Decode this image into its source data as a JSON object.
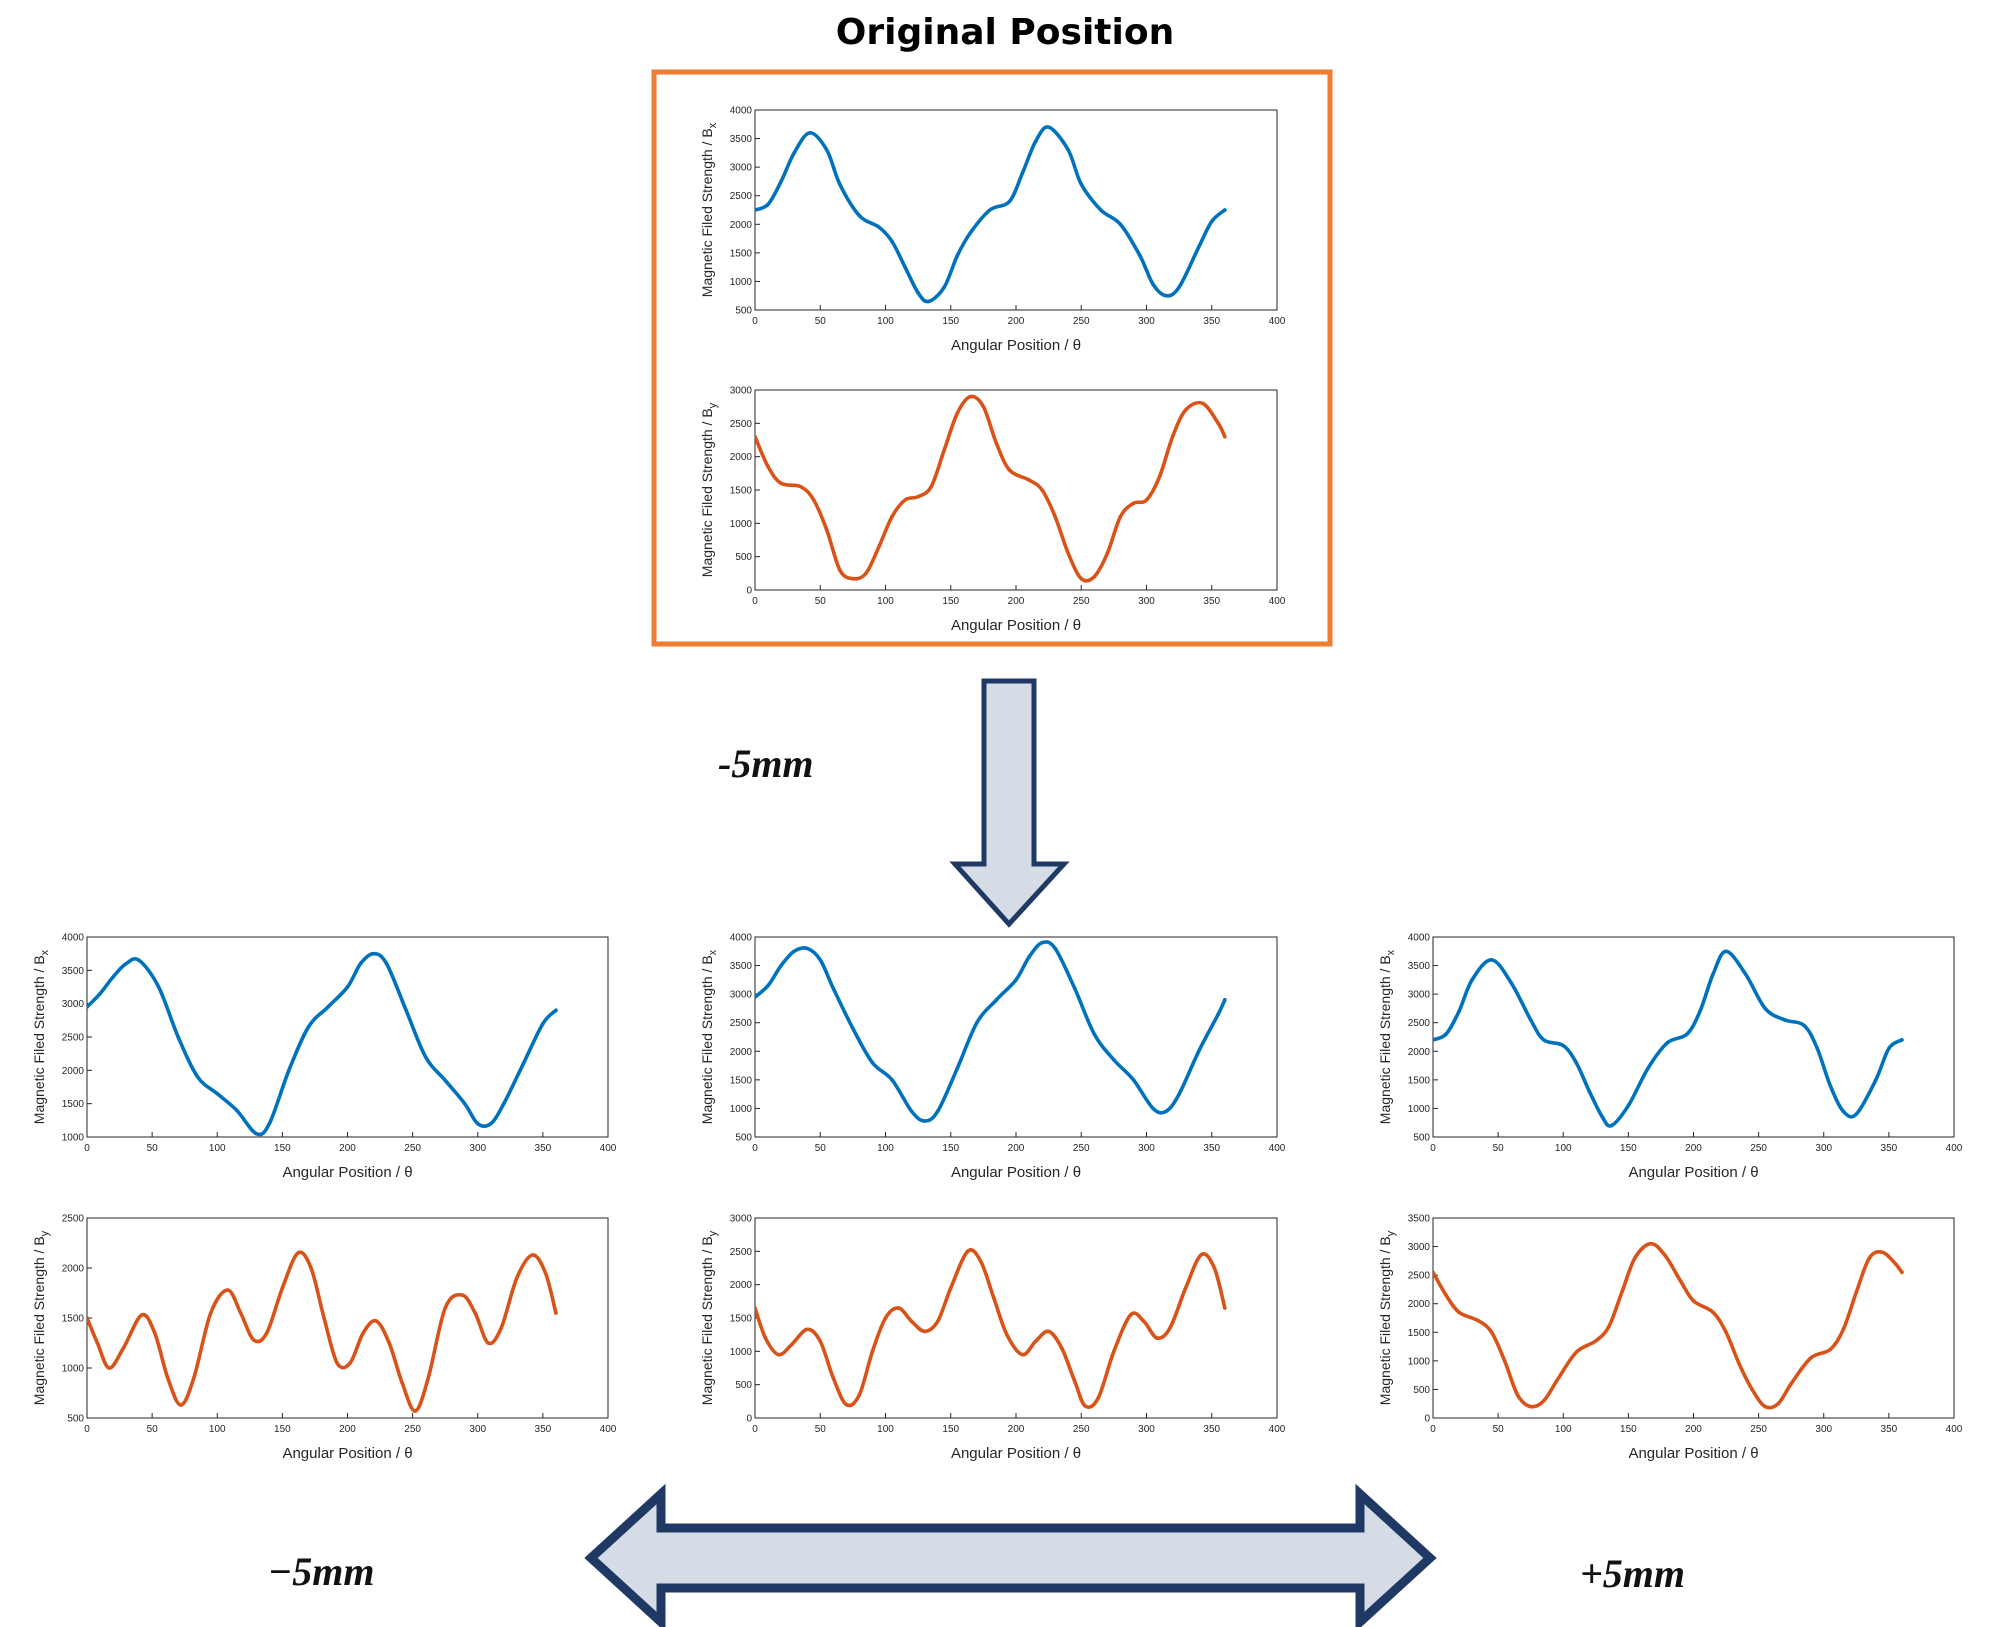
{
  "title": "Original Position",
  "labels": {
    "down_shift": "-5mm",
    "left_shift": "−5mm",
    "right_shift": "+5mm"
  },
  "colors": {
    "bx": "#0072BD",
    "by": "#D95319",
    "frame": "#ED7D31",
    "arrow_fill": "#D6DCE5",
    "arrow_stroke": "#1F3864"
  },
  "chart_data": [
    {
      "id": "original-bx",
      "type": "line",
      "xlabel": "Angular Position / θ",
      "ylabel": "Magnetic Filed Strength / B",
      "ylabel_sub": "x",
      "xlim": [
        0,
        400
      ],
      "xticks": [
        0,
        50,
        100,
        150,
        200,
        250,
        300,
        350,
        400
      ],
      "ylim": [
        500,
        4000
      ],
      "yticks": [
        500,
        1000,
        1500,
        2000,
        2500,
        3000,
        3500,
        4000
      ],
      "series": [
        {
          "color": "#0072BD",
          "x": [
            0,
            10,
            20,
            30,
            42,
            55,
            65,
            80,
            95,
            105,
            115,
            125,
            133,
            145,
            155,
            165,
            180,
            195,
            205,
            215,
            225,
            240,
            250,
            265,
            280,
            295,
            305,
            315,
            325,
            340,
            350,
            360
          ],
          "y": [
            2250,
            2350,
            2750,
            3250,
            3600,
            3300,
            2700,
            2150,
            1950,
            1700,
            1250,
            800,
            650,
            900,
            1450,
            1850,
            2250,
            2400,
            2900,
            3450,
            3700,
            3300,
            2700,
            2250,
            2000,
            1450,
            950,
            750,
            900,
            1600,
            2050,
            2250
          ]
        }
      ]
    },
    {
      "id": "original-by",
      "type": "line",
      "xlabel": "Angular Position / θ",
      "ylabel": "Magnetic Filed Strength / B",
      "ylabel_sub": "y",
      "xlim": [
        0,
        400
      ],
      "xticks": [
        0,
        50,
        100,
        150,
        200,
        250,
        300,
        350,
        400
      ],
      "ylim": [
        0,
        3000
      ],
      "yticks": [
        0,
        500,
        1000,
        1500,
        2000,
        2500,
        3000
      ],
      "series": [
        {
          "color": "#D95319",
          "x": [
            0,
            10,
            20,
            35,
            45,
            55,
            65,
            75,
            85,
            95,
            105,
            115,
            125,
            135,
            145,
            155,
            165,
            175,
            185,
            195,
            210,
            220,
            230,
            240,
            250,
            260,
            270,
            280,
            290,
            300,
            310,
            320,
            330,
            343,
            355,
            360
          ],
          "y": [
            2300,
            1850,
            1600,
            1550,
            1350,
            900,
            300,
            170,
            250,
            650,
            1100,
            1350,
            1400,
            1550,
            2100,
            2650,
            2900,
            2750,
            2200,
            1800,
            1650,
            1500,
            1100,
            550,
            170,
            200,
            550,
            1100,
            1300,
            1350,
            1700,
            2300,
            2700,
            2800,
            2500,
            2300
          ]
        }
      ]
    },
    {
      "id": "left-bx",
      "type": "line",
      "xlabel": "Angular Position / θ",
      "ylabel": "Magnetic Filed Strength / B",
      "ylabel_sub": "x",
      "xlim": [
        0,
        400
      ],
      "xticks": [
        0,
        50,
        100,
        150,
        200,
        250,
        300,
        350,
        400
      ],
      "ylim": [
        1000,
        4000
      ],
      "yticks": [
        1000,
        1500,
        2000,
        2500,
        3000,
        3500,
        4000
      ],
      "series": [
        {
          "color": "#0072BD",
          "x": [
            0,
            10,
            20,
            30,
            40,
            55,
            70,
            85,
            100,
            115,
            130,
            140,
            155,
            170,
            185,
            200,
            210,
            220,
            230,
            245,
            260,
            275,
            290,
            300,
            310,
            320,
            335,
            350,
            360
          ],
          "y": [
            2950,
            3150,
            3400,
            3600,
            3650,
            3250,
            2500,
            1900,
            1650,
            1400,
            1050,
            1200,
            2000,
            2650,
            2950,
            3250,
            3600,
            3750,
            3600,
            2900,
            2200,
            1850,
            1500,
            1200,
            1200,
            1500,
            2100,
            2700,
            2900
          ]
        }
      ]
    },
    {
      "id": "center-bx",
      "type": "line",
      "xlabel": "Angular Position / θ",
      "ylabel": "Magnetic Filed Strength / B",
      "ylabel_sub": "x",
      "xlim": [
        0,
        400
      ],
      "xticks": [
        0,
        50,
        100,
        150,
        200,
        250,
        300,
        350,
        400
      ],
      "ylim": [
        500,
        4000
      ],
      "yticks": [
        500,
        1000,
        1500,
        2000,
        2500,
        3000,
        3500,
        4000
      ],
      "series": [
        {
          "color": "#0072BD",
          "x": [
            0,
            10,
            20,
            30,
            40,
            50,
            60,
            75,
            90,
            105,
            120,
            130,
            140,
            155,
            170,
            185,
            200,
            210,
            220,
            230,
            245,
            260,
            275,
            290,
            305,
            315,
            325,
            340,
            355,
            360
          ],
          "y": [
            2950,
            3150,
            3500,
            3750,
            3800,
            3600,
            3100,
            2400,
            1800,
            1500,
            950,
            780,
            950,
            1700,
            2500,
            2900,
            3250,
            3650,
            3900,
            3800,
            3100,
            2300,
            1850,
            1500,
            1000,
            950,
            1250,
            2000,
            2650,
            2900
          ]
        }
      ]
    },
    {
      "id": "right-bx",
      "type": "line",
      "xlabel": "Angular Position / θ",
      "ylabel": "Magnetic Filed Strength / B",
      "ylabel_sub": "x",
      "xlim": [
        0,
        400
      ],
      "xticks": [
        0,
        50,
        100,
        150,
        200,
        250,
        300,
        350,
        400
      ],
      "ylim": [
        500,
        4000
      ],
      "yticks": [
        500,
        1000,
        1500,
        2000,
        2500,
        3000,
        3500,
        4000
      ],
      "series": [
        {
          "color": "#0072BD",
          "x": [
            0,
            10,
            20,
            30,
            45,
            60,
            75,
            85,
            100,
            110,
            120,
            130,
            137,
            150,
            165,
            180,
            195,
            205,
            215,
            225,
            240,
            255,
            270,
            285,
            295,
            305,
            315,
            325,
            340,
            350,
            360
          ],
          "y": [
            2200,
            2300,
            2700,
            3250,
            3600,
            3200,
            2550,
            2200,
            2100,
            1800,
            1300,
            850,
            700,
            1050,
            1700,
            2150,
            2300,
            2700,
            3350,
            3750,
            3350,
            2750,
            2550,
            2450,
            2050,
            1400,
            950,
            900,
            1500,
            2050,
            2200
          ]
        }
      ]
    },
    {
      "id": "left-by",
      "type": "line",
      "xlabel": "Angular Position / θ",
      "ylabel": "Magnetic Filed Strength / B",
      "ylabel_sub": "y",
      "xlim": [
        0,
        400
      ],
      "xticks": [
        0,
        50,
        100,
        150,
        200,
        250,
        300,
        350,
        400
      ],
      "ylim": [
        500,
        2500
      ],
      "yticks": [
        500,
        1000,
        1500,
        2000,
        2500
      ],
      "series": [
        {
          "color": "#D95319",
          "x": [
            0,
            8,
            17,
            28,
            42,
            52,
            62,
            72,
            82,
            95,
            108,
            118,
            128,
            138,
            150,
            162,
            172,
            182,
            192,
            202,
            212,
            222,
            232,
            242,
            252,
            262,
            275,
            288,
            298,
            308,
            318,
            330,
            342,
            352,
            360
          ],
          "y": [
            1500,
            1250,
            1000,
            1200,
            1530,
            1350,
            900,
            630,
            900,
            1550,
            1780,
            1550,
            1280,
            1350,
            1800,
            2150,
            2000,
            1500,
            1050,
            1050,
            1350,
            1470,
            1250,
            850,
            570,
            900,
            1600,
            1730,
            1550,
            1250,
            1400,
            1900,
            2130,
            1950,
            1550
          ]
        }
      ]
    },
    {
      "id": "center-by",
      "type": "line",
      "xlabel": "Angular Position / θ",
      "ylabel": "Magnetic Filed Strength / B",
      "ylabel_sub": "y",
      "xlim": [
        0,
        400
      ],
      "xticks": [
        0,
        50,
        100,
        150,
        200,
        250,
        300,
        350,
        400
      ],
      "ylim": [
        0,
        3000
      ],
      "yticks": [
        0,
        500,
        1000,
        1500,
        2000,
        2500,
        3000
      ],
      "series": [
        {
          "color": "#D95319",
          "x": [
            0,
            8,
            18,
            28,
            40,
            50,
            60,
            70,
            80,
            90,
            100,
            110,
            120,
            130,
            140,
            150,
            163,
            173,
            183,
            193,
            205,
            215,
            225,
            235,
            245,
            253,
            263,
            275,
            288,
            298,
            308,
            318,
            330,
            342,
            352,
            360
          ],
          "y": [
            1650,
            1200,
            950,
            1100,
            1330,
            1150,
            600,
            200,
            350,
            1000,
            1500,
            1650,
            1450,
            1300,
            1450,
            1950,
            2500,
            2350,
            1800,
            1250,
            950,
            1150,
            1300,
            1050,
            550,
            180,
            300,
            1000,
            1550,
            1450,
            1200,
            1350,
            1950,
            2450,
            2250,
            1650
          ]
        }
      ]
    },
    {
      "id": "right-by",
      "type": "line",
      "xlabel": "Angular Position / θ",
      "ylabel": "Magnetic Filed Strength / B",
      "ylabel_sub": "y",
      "xlim": [
        0,
        400
      ],
      "xticks": [
        0,
        50,
        100,
        150,
        200,
        250,
        300,
        350,
        400
      ],
      "ylim": [
        0,
        3500
      ],
      "yticks": [
        0,
        500,
        1000,
        1500,
        2000,
        2500,
        3000,
        3500
      ],
      "series": [
        {
          "color": "#D95319",
          "x": [
            0,
            10,
            20,
            35,
            45,
            55,
            65,
            75,
            85,
            95,
            110,
            125,
            135,
            145,
            155,
            167,
            178,
            190,
            200,
            215,
            225,
            235,
            245,
            255,
            265,
            275,
            290,
            305,
            315,
            325,
            335,
            345,
            355,
            360
          ],
          "y": [
            2550,
            2150,
            1850,
            1700,
            1500,
            1000,
            400,
            200,
            300,
            650,
            1150,
            1350,
            1600,
            2200,
            2800,
            3050,
            2850,
            2400,
            2050,
            1850,
            1500,
            950,
            500,
            200,
            250,
            600,
            1050,
            1200,
            1550,
            2200,
            2800,
            2900,
            2700,
            2550
          ]
        }
      ]
    }
  ]
}
